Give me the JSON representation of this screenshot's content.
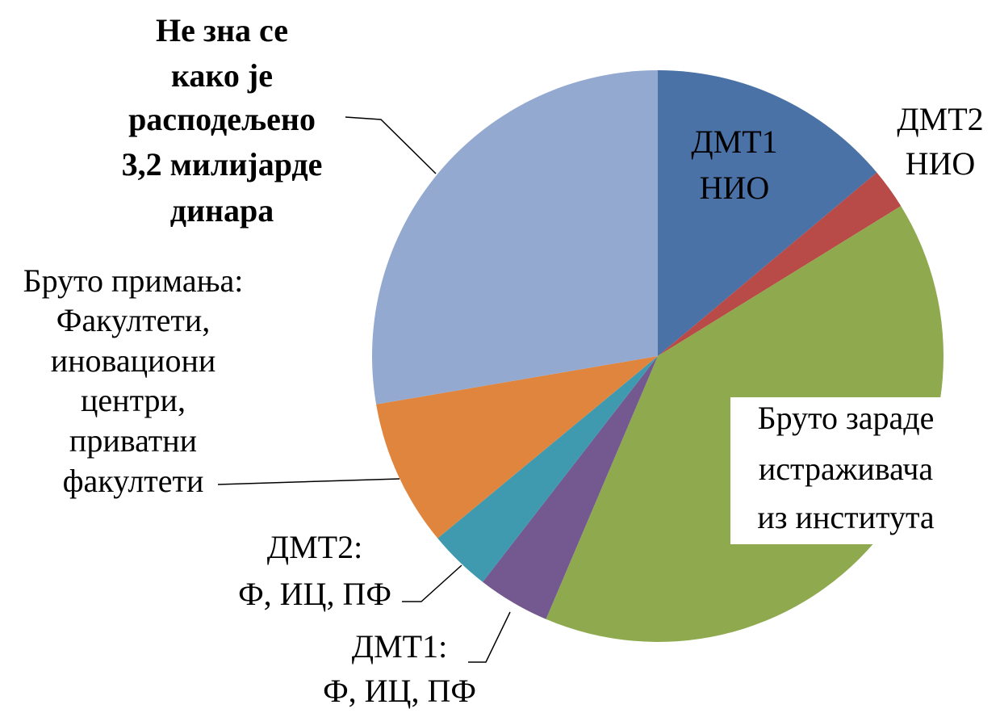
{
  "chart_data": {
    "type": "pie",
    "categories": [
      [
        "ДМТ1",
        "НИО"
      ],
      [
        "ДМТ2",
        "НИО"
      ],
      [
        "Бруто зараде",
        "истраживача",
        "из института"
      ],
      [
        "ДМТ1:",
        "Ф, ИЦ, ПФ"
      ],
      [
        "ДМТ2:",
        "Ф, ИЦ, ПФ"
      ],
      [
        "Бруто примања:",
        "Факултети,",
        "иновациони",
        "центри,",
        "приватни",
        "факултети"
      ],
      [
        "Не зна се",
        "како је",
        "расподељено",
        "3,2 милијарде",
        "динара"
      ]
    ],
    "values": [
      13.9,
      2.3,
      40.2,
      4.1,
      3.5,
      8.3,
      27.7
    ],
    "colors": [
      "#4a72a6",
      "#b84a47",
      "#8fa94f",
      "#73598f",
      "#3f9ab0",
      "#e0853e",
      "#94a9d0"
    ]
  }
}
